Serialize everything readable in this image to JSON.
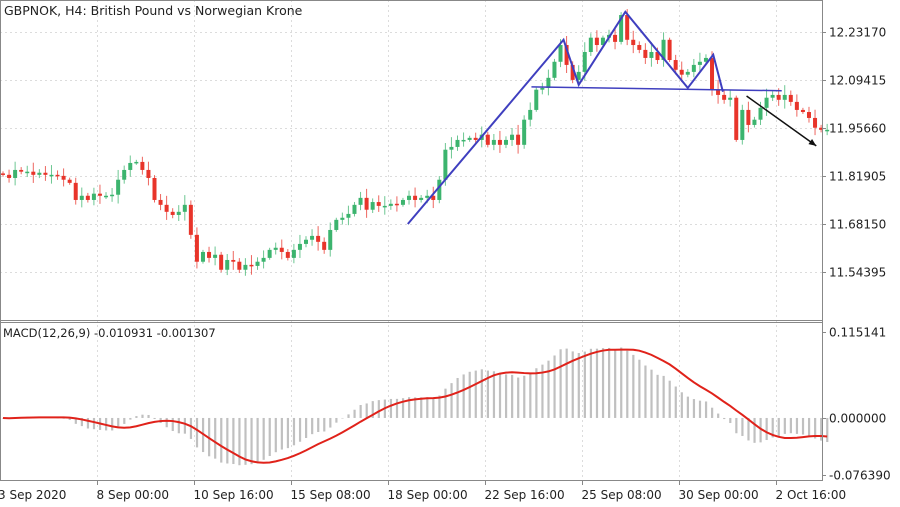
{
  "header": {
    "title": "GBPNOK, H4:  British Pound vs Norwegian Krone"
  },
  "indicator": {
    "label": "MACD(12,26,9) -0.010931 -0.001307"
  },
  "colors": {
    "bull": "#3cb46e",
    "bear": "#e8342a",
    "pattern_lines": "#3f3fbf",
    "arrow": "#111111",
    "macd_hist": "#c0c0c0",
    "signal": "#e0221a",
    "grid": "#dcdcdc"
  },
  "chart_data": [
    {
      "type": "candlestick",
      "title": "GBPNOK, H4",
      "timeframe": "H4",
      "price_ticks": [
        "12.23170",
        "12.09415",
        "11.95660",
        "11.81905",
        "11.68150",
        "11.54395"
      ],
      "ylim": [
        11.406,
        12.323
      ],
      "grid": true,
      "x_tick_labels": [
        {
          "bar": 0,
          "label": "3 Sep 2020"
        },
        {
          "bar": 16,
          "label": "8 Sep 00:00"
        },
        {
          "bar": 32,
          "label": "10 Sep 16:00"
        },
        {
          "bar": 48,
          "label": "15 Sep 08:00"
        },
        {
          "bar": 64,
          "label": "18 Sep 00:00"
        },
        {
          "bar": 80,
          "label": "22 Sep 16:00"
        },
        {
          "bar": 96,
          "label": "25 Sep 08:00"
        },
        {
          "bar": 112,
          "label": "30 Sep 00:00"
        },
        {
          "bar": 128,
          "label": "2 Oct 16:00"
        }
      ],
      "closes": [
        11.822,
        11.813,
        11.836,
        11.831,
        11.831,
        11.822,
        11.828,
        11.822,
        11.822,
        11.819,
        11.808,
        11.799,
        11.75,
        11.762,
        11.75,
        11.768,
        11.762,
        11.762,
        11.765,
        11.808,
        11.836,
        11.856,
        11.859,
        11.836,
        11.813,
        11.75,
        11.736,
        11.716,
        11.707,
        11.716,
        11.736,
        11.65,
        11.573,
        11.601,
        11.584,
        11.593,
        11.55,
        11.578,
        11.573,
        11.55,
        11.564,
        11.561,
        11.573,
        11.584,
        11.607,
        11.613,
        11.601,
        11.584,
        11.607,
        11.624,
        11.636,
        11.647,
        11.63,
        11.607,
        11.664,
        11.693,
        11.699,
        11.71,
        11.736,
        11.756,
        11.722,
        11.744,
        11.733,
        11.733,
        11.739,
        11.736,
        11.75,
        11.762,
        11.75,
        11.756,
        11.762,
        11.75,
        11.808,
        11.894,
        11.902,
        11.922,
        11.922,
        11.928,
        11.922,
        11.937,
        11.908,
        11.922,
        11.908,
        11.922,
        11.937,
        11.908,
        11.98,
        12.008,
        12.066,
        12.071,
        12.1,
        12.146,
        12.194,
        12.137,
        12.094,
        12.117,
        12.174,
        12.215,
        12.194,
        12.215,
        12.223,
        12.203,
        12.28,
        12.209,
        12.194,
        12.18,
        12.157,
        12.174,
        12.151,
        12.209,
        12.151,
        12.123,
        12.109,
        12.117,
        12.137,
        12.146,
        12.157,
        12.066,
        12.051,
        12.037,
        12.043,
        11.922,
        12.008,
        11.965,
        11.98,
        12.014,
        12.043,
        12.051,
        12.037,
        12.051,
        12.031,
        12.008,
        12.002,
        11.985,
        11.957,
        11.951,
        11.951
      ],
      "pattern_polyline": [
        [
          66.8,
          11.681
        ],
        [
          92.5,
          12.209
        ],
        [
          95,
          12.08
        ],
        [
          102.7,
          12.289
        ],
        [
          113,
          12.071
        ],
        [
          117.2,
          12.166
        ],
        [
          118.8,
          12.06
        ]
      ],
      "neckline": [
        [
          87.2,
          12.074
        ],
        [
          128.5,
          12.063
        ]
      ],
      "arrow": [
        [
          122.7,
          12.048
        ],
        [
          134.2,
          11.905
        ]
      ]
    },
    {
      "type": "bar+line",
      "title": "MACD(12,26,9)",
      "params": [
        12,
        26,
        9
      ],
      "values_shown": [
        -0.010931,
        -0.001307
      ],
      "y_ticks": [
        "0.115141",
        "0.000000",
        "-0.076390"
      ],
      "ylim": [
        -0.07639,
        0.115141
      ]
    }
  ]
}
